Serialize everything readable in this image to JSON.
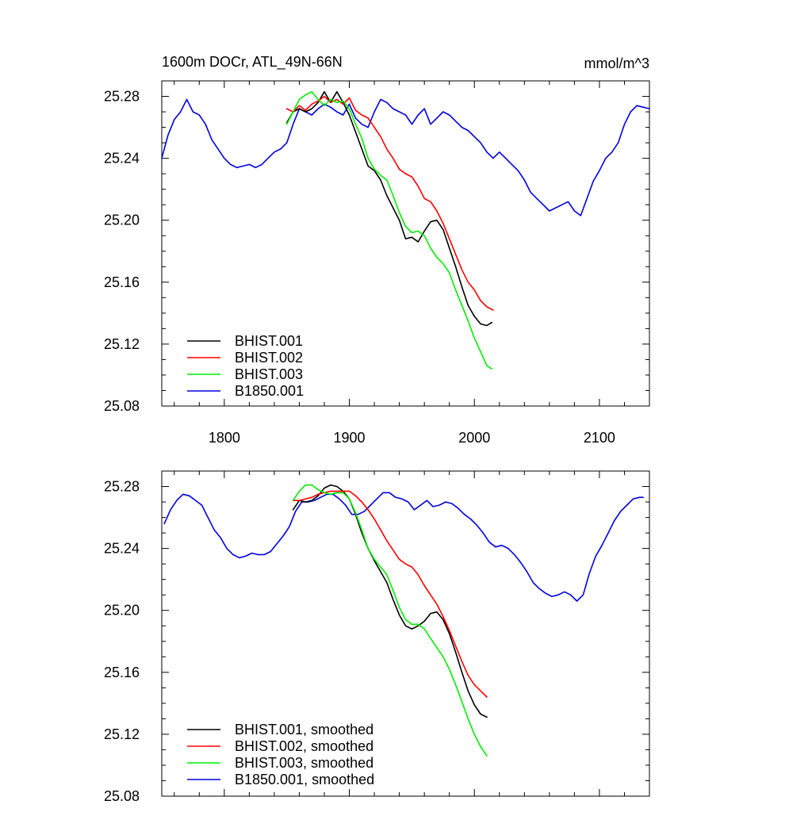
{
  "page": {
    "title_left": "1600m DOCr, ATL_49N-66N",
    "title_right": "mmol/m^3"
  },
  "colors": {
    "BHIST.001": "#000000",
    "BHIST.002": "#ff0000",
    "BHIST.003": "#00ee00",
    "B1850.001": "#0000dd"
  },
  "chart_data": [
    {
      "type": "line",
      "title": "1600m DOCr, ATL_49N-66N",
      "units_label": "mmol/m^3",
      "xlim": [
        1750,
        2140
      ],
      "ylim": [
        25.08,
        25.29
      ],
      "xticks": [
        1800,
        1900,
        2000,
        2100
      ],
      "xtick_labels": [
        "1800",
        "1900",
        "2000",
        "2100"
      ],
      "yticks": [
        25.08,
        25.12,
        25.16,
        25.2,
        25.24,
        25.28
      ],
      "ytick_labels": [
        "25.08",
        "25.12",
        "25.16",
        "25.20",
        "25.24",
        "25.28"
      ],
      "legend_position": "bottom-left",
      "series": [
        {
          "name": "BHIST.001",
          "color_key": "BHIST.001",
          "x": [
            1850,
            1855,
            1860,
            1865,
            1870,
            1875,
            1880,
            1885,
            1890,
            1895,
            1900,
            1905,
            1910,
            1915,
            1920,
            1925,
            1930,
            1935,
            1940,
            1945,
            1950,
            1955,
            1960,
            1965,
            1970,
            1975,
            1980,
            1985,
            1990,
            1995,
            2000,
            2005,
            2010,
            2014
          ],
          "y": [
            25.263,
            25.27,
            25.272,
            25.27,
            25.272,
            25.276,
            25.283,
            25.276,
            25.283,
            25.276,
            25.268,
            25.257,
            25.246,
            25.235,
            25.232,
            25.226,
            25.216,
            25.208,
            25.2,
            25.188,
            25.189,
            25.186,
            25.193,
            25.199,
            25.2,
            25.194,
            25.182,
            25.17,
            25.157,
            25.145,
            25.138,
            25.133,
            25.132,
            25.134
          ]
        },
        {
          "name": "BHIST.002",
          "color_key": "BHIST.002",
          "x": [
            1850,
            1855,
            1860,
            1865,
            1870,
            1875,
            1880,
            1885,
            1890,
            1895,
            1900,
            1905,
            1910,
            1915,
            1920,
            1925,
            1930,
            1935,
            1940,
            1945,
            1950,
            1955,
            1960,
            1965,
            1970,
            1975,
            1980,
            1985,
            1990,
            1995,
            2000,
            2005,
            2010,
            2015
          ],
          "y": [
            25.272,
            25.27,
            25.274,
            25.271,
            25.275,
            25.277,
            25.28,
            25.276,
            25.278,
            25.275,
            25.279,
            25.271,
            25.268,
            25.266,
            25.26,
            25.254,
            25.246,
            25.24,
            25.233,
            25.23,
            25.228,
            25.222,
            25.214,
            25.212,
            25.206,
            25.198,
            25.188,
            25.178,
            25.168,
            25.16,
            25.155,
            25.148,
            25.144,
            25.142
          ]
        },
        {
          "name": "BHIST.003",
          "color_key": "BHIST.003",
          "x": [
            1850,
            1855,
            1860,
            1865,
            1870,
            1875,
            1880,
            1885,
            1890,
            1895,
            1900,
            1905,
            1910,
            1915,
            1920,
            1925,
            1930,
            1935,
            1940,
            1945,
            1950,
            1955,
            1960,
            1965,
            1970,
            1975,
            1980,
            1985,
            1990,
            1995,
            2000,
            2005,
            2010,
            2014
          ],
          "y": [
            25.262,
            25.27,
            25.278,
            25.281,
            25.283,
            25.278,
            25.274,
            25.278,
            25.276,
            25.277,
            25.272,
            25.262,
            25.253,
            25.24,
            25.233,
            25.229,
            25.226,
            25.216,
            25.205,
            25.196,
            25.192,
            25.193,
            25.19,
            25.182,
            25.176,
            25.172,
            25.166,
            25.155,
            25.145,
            25.135,
            25.124,
            25.115,
            25.106,
            25.104
          ]
        },
        {
          "name": "B1850.001",
          "color_key": "B1850.001",
          "x": [
            1750,
            1755,
            1760,
            1765,
            1770,
            1775,
            1780,
            1785,
            1790,
            1795,
            1800,
            1805,
            1810,
            1815,
            1820,
            1825,
            1830,
            1835,
            1840,
            1845,
            1850,
            1855,
            1860,
            1865,
            1870,
            1875,
            1880,
            1885,
            1890,
            1895,
            1900,
            1905,
            1910,
            1915,
            1920,
            1925,
            1930,
            1935,
            1940,
            1945,
            1950,
            1955,
            1960,
            1965,
            1970,
            1975,
            1980,
            1985,
            1990,
            1995,
            2000,
            2005,
            2010,
            2015,
            2020,
            2025,
            2030,
            2035,
            2040,
            2045,
            2050,
            2055,
            2060,
            2065,
            2070,
            2075,
            2080,
            2085,
            2090,
            2095,
            2100,
            2105,
            2110,
            2115,
            2120,
            2125,
            2130,
            2135,
            2140
          ],
          "y": [
            25.24,
            25.255,
            25.265,
            25.27,
            25.278,
            25.27,
            25.268,
            25.262,
            25.252,
            25.246,
            25.24,
            25.236,
            25.234,
            25.235,
            25.236,
            25.234,
            25.236,
            25.24,
            25.244,
            25.246,
            25.25,
            25.262,
            25.272,
            25.27,
            25.268,
            25.272,
            25.275,
            25.273,
            25.27,
            25.268,
            25.275,
            25.266,
            25.262,
            25.26,
            25.27,
            25.278,
            25.276,
            25.272,
            25.27,
            25.268,
            25.262,
            25.268,
            25.272,
            25.262,
            25.266,
            25.27,
            25.268,
            25.264,
            25.26,
            25.258,
            25.254,
            25.25,
            25.244,
            25.24,
            25.244,
            25.24,
            25.236,
            25.232,
            25.226,
            25.218,
            25.214,
            25.21,
            25.206,
            25.208,
            25.21,
            25.212,
            25.206,
            25.203,
            25.214,
            25.225,
            25.232,
            25.24,
            25.244,
            25.25,
            25.262,
            25.27,
            25.274,
            25.273,
            25.272
          ]
        }
      ]
    },
    {
      "type": "line",
      "xlim": [
        1750,
        2140
      ],
      "ylim": [
        25.08,
        25.29
      ],
      "xticks": [
        1800,
        1900,
        2000,
        2100
      ],
      "xtick_labels": [],
      "yticks": [
        25.08,
        25.12,
        25.16,
        25.2,
        25.24,
        25.28
      ],
      "ytick_labels": [
        "25.08",
        "25.12",
        "25.16",
        "25.20",
        "25.24",
        "25.28"
      ],
      "legend_position": "bottom-left",
      "series": [
        {
          "name": "BHIST.001, smoothed",
          "color_key": "BHIST.001",
          "x": [
            1855,
            1860,
            1865,
            1870,
            1875,
            1880,
            1885,
            1890,
            1895,
            1900,
            1905,
            1910,
            1915,
            1920,
            1925,
            1930,
            1935,
            1940,
            1945,
            1950,
            1955,
            1960,
            1965,
            1970,
            1975,
            1980,
            1985,
            1990,
            1995,
            2000,
            2005,
            2010
          ],
          "y": [
            25.265,
            25.271,
            25.27,
            25.271,
            25.274,
            25.279,
            25.281,
            25.28,
            25.277,
            25.272,
            25.262,
            25.25,
            25.24,
            25.232,
            25.225,
            25.218,
            25.207,
            25.197,
            25.19,
            25.188,
            25.19,
            25.193,
            25.198,
            25.199,
            25.194,
            25.185,
            25.173,
            25.16,
            25.148,
            25.139,
            25.133,
            25.131
          ]
        },
        {
          "name": "BHIST.002, smoothed",
          "color_key": "BHIST.002",
          "x": [
            1855,
            1860,
            1865,
            1870,
            1875,
            1880,
            1885,
            1890,
            1895,
            1900,
            1905,
            1910,
            1915,
            1920,
            1925,
            1930,
            1935,
            1940,
            1945,
            1950,
            1955,
            1960,
            1965,
            1970,
            1975,
            1980,
            1985,
            1990,
            1995,
            2000,
            2005,
            2010
          ],
          "y": [
            25.271,
            25.271,
            25.272,
            25.273,
            25.275,
            25.276,
            25.277,
            25.277,
            25.277,
            25.277,
            25.274,
            25.27,
            25.265,
            25.259,
            25.252,
            25.245,
            25.239,
            25.233,
            25.23,
            25.228,
            25.223,
            25.216,
            25.21,
            25.204,
            25.196,
            25.187,
            25.177,
            25.167,
            25.158,
            25.152,
            25.148,
            25.144
          ]
        },
        {
          "name": "BHIST.003, smoothed",
          "color_key": "BHIST.003",
          "x": [
            1855,
            1860,
            1865,
            1870,
            1875,
            1880,
            1885,
            1890,
            1895,
            1900,
            1905,
            1910,
            1915,
            1920,
            1925,
            1930,
            1935,
            1940,
            1945,
            1950,
            1955,
            1960,
            1965,
            1970,
            1975,
            1980,
            1985,
            1990,
            1995,
            2000,
            2005,
            2010
          ],
          "y": [
            25.271,
            25.277,
            25.281,
            25.281,
            25.278,
            25.276,
            25.275,
            25.276,
            25.276,
            25.272,
            25.263,
            25.252,
            25.24,
            25.233,
            25.228,
            25.223,
            25.213,
            25.202,
            25.194,
            25.191,
            25.191,
            25.188,
            25.182,
            25.176,
            25.17,
            25.162,
            25.152,
            25.141,
            25.13,
            25.12,
            25.112,
            25.106
          ]
        },
        {
          "name": "B1850.001, smoothed",
          "color_key": "B1850.001",
          "x": [
            1752,
            1757,
            1762,
            1767,
            1772,
            1777,
            1782,
            1787,
            1792,
            1797,
            1802,
            1807,
            1812,
            1817,
            1822,
            1827,
            1832,
            1837,
            1842,
            1847,
            1852,
            1857,
            1862,
            1867,
            1872,
            1877,
            1882,
            1887,
            1892,
            1897,
            1902,
            1907,
            1912,
            1917,
            1922,
            1927,
            1932,
            1937,
            1942,
            1947,
            1952,
            1957,
            1962,
            1967,
            1972,
            1977,
            1982,
            1987,
            1992,
            1997,
            2002,
            2007,
            2012,
            2017,
            2022,
            2027,
            2032,
            2037,
            2042,
            2047,
            2052,
            2057,
            2062,
            2067,
            2072,
            2077,
            2082,
            2087,
            2092,
            2097,
            2102,
            2107,
            2112,
            2117,
            2122,
            2127,
            2132,
            2135
          ],
          "y": [
            25.256,
            25.265,
            25.271,
            25.275,
            25.274,
            25.271,
            25.268,
            25.26,
            25.252,
            25.247,
            25.24,
            25.236,
            25.234,
            25.235,
            25.237,
            25.236,
            25.236,
            25.238,
            25.243,
            25.248,
            25.254,
            25.264,
            25.27,
            25.27,
            25.271,
            25.273,
            25.275,
            25.275,
            25.272,
            25.268,
            25.262,
            25.262,
            25.264,
            25.268,
            25.272,
            25.276,
            25.276,
            25.273,
            25.272,
            25.27,
            25.265,
            25.268,
            25.271,
            25.267,
            25.268,
            25.27,
            25.269,
            25.266,
            25.262,
            25.259,
            25.255,
            25.25,
            25.244,
            25.241,
            25.242,
            25.24,
            25.236,
            25.231,
            25.225,
            25.218,
            25.214,
            25.211,
            25.209,
            25.21,
            25.212,
            25.21,
            25.206,
            25.21,
            25.224,
            25.235,
            25.242,
            25.25,
            25.258,
            25.264,
            25.268,
            25.272,
            25.273,
            25.273
          ]
        }
      ]
    }
  ]
}
